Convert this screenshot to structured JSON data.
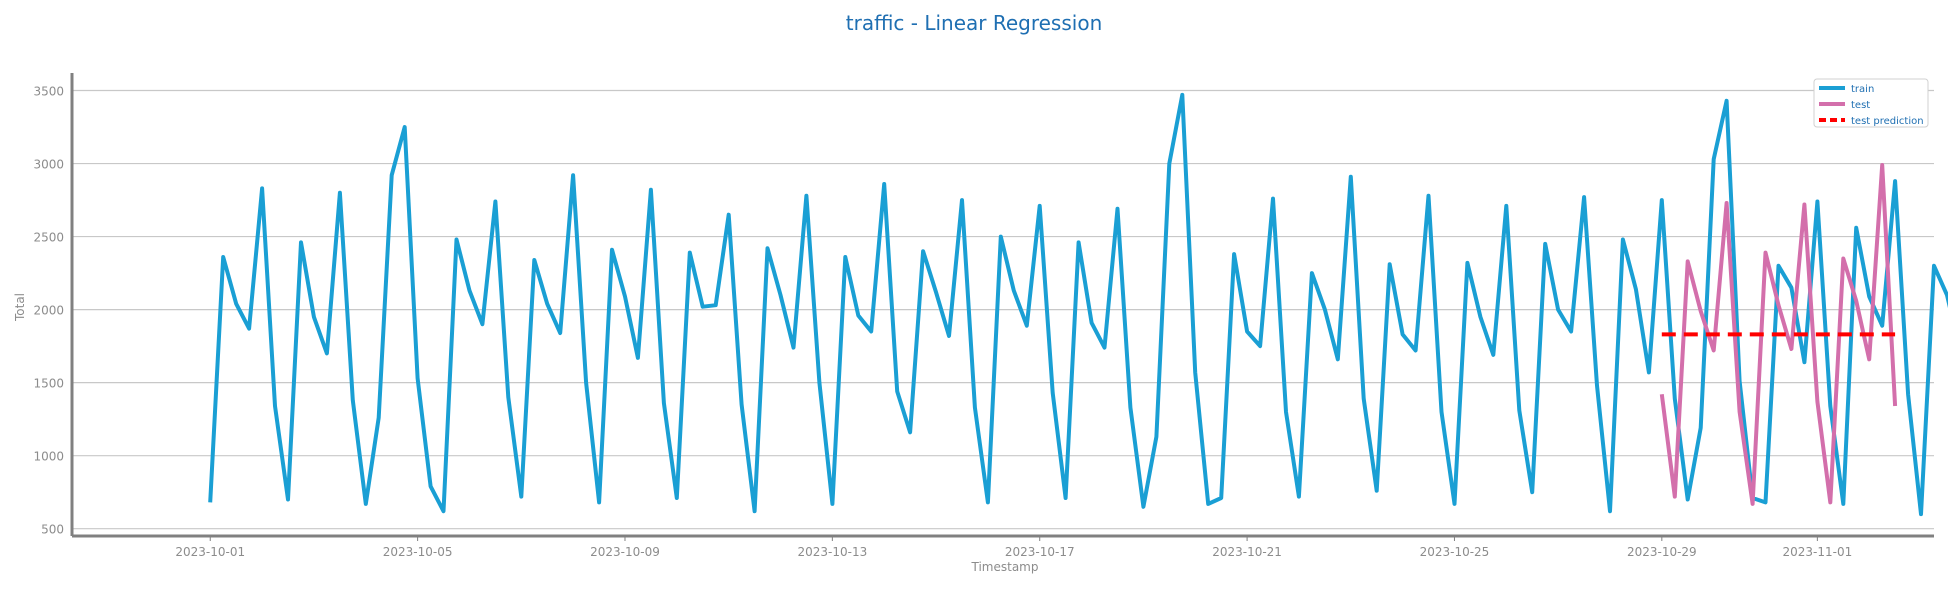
{
  "chart_data": {
    "type": "line",
    "title": "traffic - Linear Regression",
    "xlabel": "Timestamp",
    "ylabel": "Total",
    "ylim": [
      450,
      3620
    ],
    "xlim": [
      "2023-09-28T08:00",
      "2023-11-03T06:00"
    ],
    "x_ticks": [
      "2023-10-01",
      "2023-10-05",
      "2023-10-09",
      "2023-10-13",
      "2023-10-17",
      "2023-10-21",
      "2023-10-25",
      "2023-10-29",
      "2023-11-01"
    ],
    "y_ticks": [
      500,
      1000,
      1500,
      2000,
      2500,
      3000,
      3500
    ],
    "grid": "horizontal",
    "legend_position": "top-right",
    "sampling": "4 readings per day (00:00, 04:00, 08:00, 12:00 pattern approximated at 4 points/day)",
    "series": [
      {
        "name": "train",
        "color": "#1a9fd4",
        "style": "solid",
        "start": "2023-10-01T00:00",
        "step_hours": 6,
        "values": [
          680,
          2360,
          2040,
          1870,
          2830,
          1340,
          700,
          2460,
          1950,
          1700,
          2800,
          1380,
          670,
          1260,
          2920,
          3250,
          1530,
          790,
          620,
          2480,
          2130,
          1900,
          2740,
          1400,
          720,
          2340,
          2040,
          1840,
          2920,
          1500,
          680,
          2410,
          2090,
          1670,
          2820,
          1360,
          710,
          2390,
          2020,
          2030,
          2650,
          1350,
          620,
          2420,
          2100,
          1740,
          2780,
          1500,
          670,
          2360,
          1960,
          1850,
          2860,
          1440,
          1160,
          2400,
          2120,
          1820,
          2750,
          1330,
          680,
          2500,
          2130,
          1890,
          2710,
          1430,
          710,
          2460,
          1910,
          1740,
          2690,
          1330,
          650,
          1130,
          3000,
          3470,
          1570,
          670,
          710,
          2380,
          1850,
          1750,
          2760,
          1300,
          720,
          2250,
          2000,
          1660,
          2910,
          1390,
          760,
          2310,
          1830,
          1720,
          2780,
          1300,
          670,
          2320,
          1950,
          1690,
          2710,
          1310,
          750,
          2450,
          2000,
          1850,
          2770,
          1480,
          620,
          2480,
          2140,
          1570,
          2750,
          1390,
          700,
          1190,
          3030,
          3430,
          1510,
          710,
          680,
          2300,
          2150,
          1640,
          2740,
          1340,
          670,
          2560,
          2090,
          1890,
          2880,
          1420,
          600,
          2300,
          2100,
          1720,
          2600,
          1340,
          700,
          2310,
          2040,
          1690,
          2670,
          1410,
          730,
          2380,
          2030,
          1740,
          2710,
          1370,
          720,
          2270,
          2040,
          1720,
          2860,
          1480,
          670,
          1390,
          2980,
          3180,
          1510,
          770,
          710,
          2380,
          1910,
          1800,
          2720
        ]
      },
      {
        "name": "test",
        "color": "#d36fab",
        "style": "solid",
        "start": "2023-10-29T00:00",
        "step_hours": 6,
        "values": [
          1420,
          720,
          2330,
          1990,
          1720,
          2730,
          1300,
          670,
          2390,
          2030,
          1730,
          2720,
          1370,
          680,
          2350,
          2060,
          1660,
          2990,
          1340
        ]
      },
      {
        "name": "test prediction",
        "color": "#ff0000",
        "style": "dashed",
        "start": "2023-10-29T00:00",
        "step_hours": 6,
        "values": [
          1830,
          1830,
          1830,
          1830,
          1830,
          1830,
          1830,
          1830,
          1830,
          1830,
          1830,
          1830,
          1830,
          1830,
          1830,
          1830,
          1830,
          1830,
          1830
        ]
      }
    ]
  }
}
